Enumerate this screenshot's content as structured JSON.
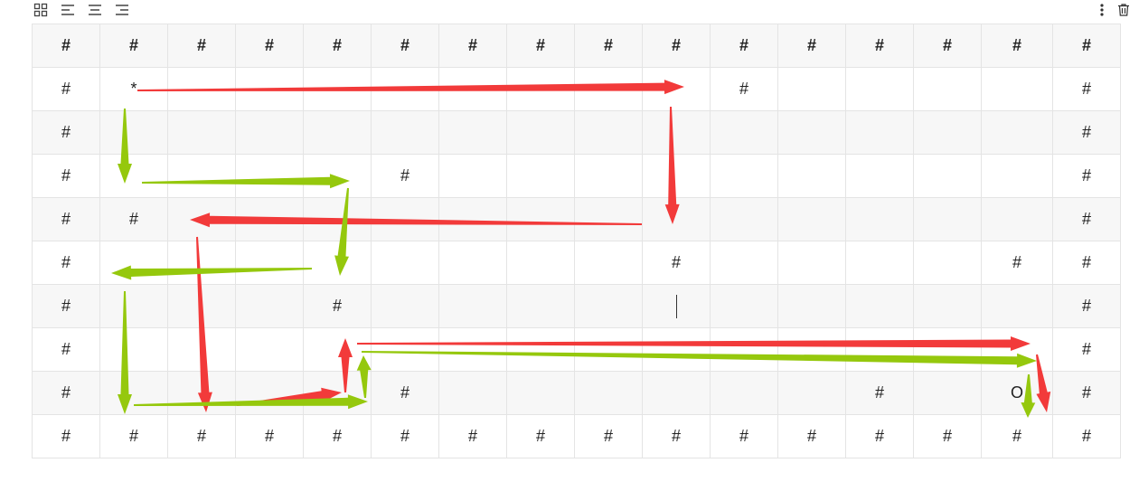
{
  "toolbar": {
    "left_icons": [
      "grid-icon",
      "align-left-icon",
      "align-center-icon",
      "align-right-icon"
    ],
    "right_icons": [
      "more-vertical-icon",
      "trash-icon"
    ]
  },
  "table": {
    "rows": [
      [
        "#",
        "#",
        "#",
        "#",
        "#",
        "#",
        "#",
        "#",
        "#",
        "#",
        "#",
        "#",
        "#",
        "#",
        "#",
        "#"
      ],
      [
        "#",
        "*",
        "",
        "",
        "",
        "",
        "",
        "",
        "",
        "",
        "#",
        "",
        "",
        "",
        "",
        "#"
      ],
      [
        "#",
        "",
        "",
        "",
        "",
        "",
        "",
        "",
        "",
        "",
        "",
        "",
        "",
        "",
        "",
        "#"
      ],
      [
        "#",
        "",
        "",
        "",
        "",
        "#",
        "",
        "",
        "",
        "",
        "",
        "",
        "",
        "",
        "",
        "#"
      ],
      [
        "#",
        "#",
        "",
        "",
        "",
        "",
        "",
        "",
        "",
        "",
        "",
        "",
        "",
        "",
        "",
        "#"
      ],
      [
        "#",
        "",
        "",
        "",
        "",
        "",
        "",
        "",
        "",
        "#",
        "",
        "",
        "",
        "",
        "#",
        "#"
      ],
      [
        "#",
        "",
        "",
        "",
        "#",
        "",
        "",
        "",
        "",
        "",
        "",
        "",
        "",
        "",
        "",
        "#"
      ],
      [
        "#",
        "",
        "",
        "",
        "",
        "",
        "",
        "",
        "",
        "",
        "",
        "",
        "",
        "",
        "",
        "#"
      ],
      [
        "#",
        "",
        "",
        "",
        "",
        "#",
        "",
        "",
        "",
        "",
        "",
        "",
        "#",
        "",
        "O",
        "#"
      ],
      [
        "#",
        "#",
        "#",
        "#",
        "#",
        "#",
        "#",
        "#",
        "#",
        "#",
        "#",
        "#",
        "#",
        "#",
        "#",
        "#"
      ]
    ],
    "caret_cell": [
      6,
      9
    ]
  },
  "annotations": {
    "red_color": "#f23a3a",
    "green_color": "#95c80d"
  }
}
